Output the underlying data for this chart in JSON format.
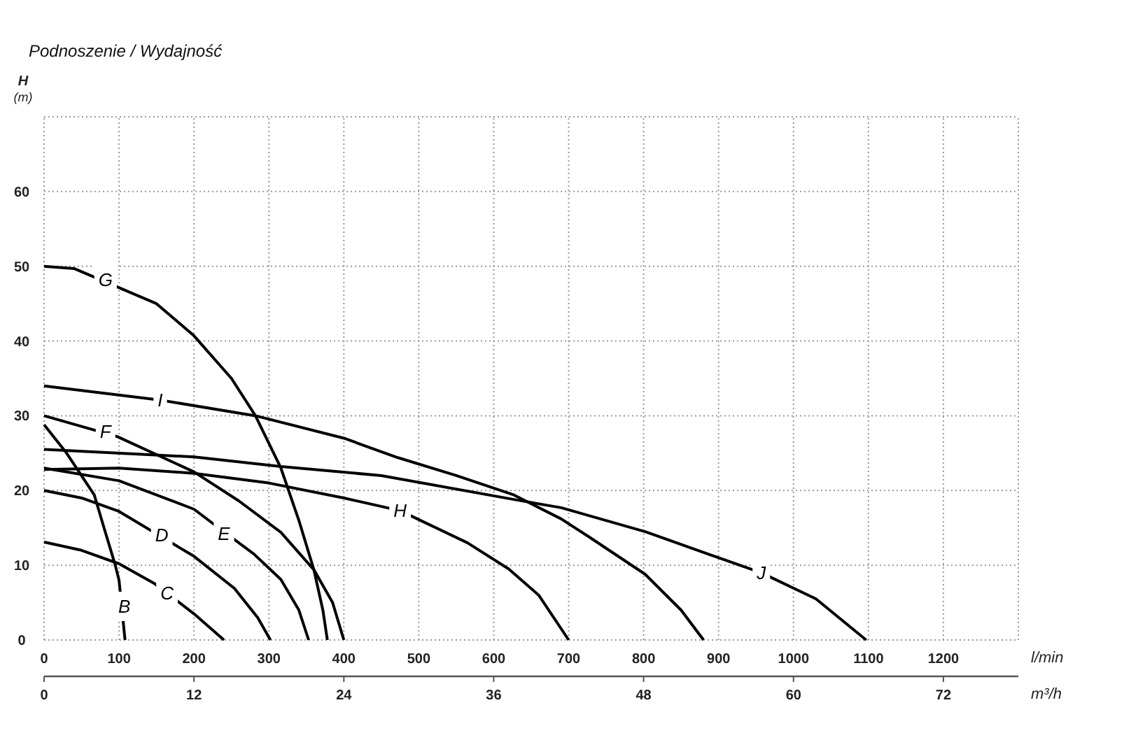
{
  "chart_data": {
    "type": "line",
    "title": "Podnoszenie / Wydajność",
    "xlabel": "l/min",
    "x2label": "m³/h",
    "ylabel": "H\n(m)",
    "xlim": [
      0,
      1300
    ],
    "xticks": [
      0,
      100,
      200,
      300,
      400,
      500,
      600,
      700,
      800,
      900,
      1000,
      1100,
      1200,
      {
        "value": 1300,
        "label": null
      }
    ],
    "x2lim": [
      0,
      78
    ],
    "x2ticks": [
      0,
      12,
      24,
      36,
      48,
      60,
      72
    ],
    "ylim": [
      0,
      70
    ],
    "yticks": [
      0,
      10,
      20,
      30,
      40,
      50,
      60,
      {
        "value": 70,
        "label": null
      }
    ],
    "grid": true,
    "marker": "none",
    "line_style": "solid",
    "series": [
      {
        "color": "#000000",
        "x": [
          0,
          30,
          67,
          80,
          95,
          100,
          108
        ],
        "values": [
          28.8,
          25,
          19.4,
          15,
          10,
          8,
          0
        ]
      },
      {
        "color": "#000000",
        "x": [
          0,
          50,
          100,
          148,
          200,
          240
        ],
        "values": [
          13.1,
          12,
          10.2,
          7.5,
          3.5,
          0
        ]
      },
      {
        "color": "#000000",
        "x": [
          0,
          50,
          100,
          200,
          254,
          285,
          302
        ],
        "values": [
          20,
          19,
          17.2,
          11.2,
          6.9,
          3,
          0
        ]
      },
      {
        "color": "#000000",
        "x": [
          0,
          100,
          200,
          229,
          280,
          316,
          340,
          353
        ],
        "values": [
          23,
          21.3,
          17.5,
          15.3,
          11.5,
          8.1,
          4,
          0
        ]
      },
      {
        "color": "#000000",
        "x": [
          0,
          98,
          200,
          260,
          316,
          360,
          385,
          400
        ],
        "values": [
          30,
          27.2,
          22.5,
          18.6,
          14.4,
          9.4,
          5,
          0
        ]
      },
      {
        "color": "#000000",
        "x": [
          0,
          40,
          150,
          200,
          250,
          282,
          316,
          340,
          360,
          372,
          378
        ],
        "values": [
          50,
          49.7,
          45,
          40.7,
          35,
          30,
          23,
          16,
          9.4,
          4,
          0
        ]
      },
      {
        "color": "#000000",
        "x": [
          0,
          100,
          200,
          300,
          400,
          475,
          565,
          620,
          660,
          700
        ],
        "values": [
          22.8,
          23,
          22.3,
          21,
          19,
          17.3,
          13,
          9.5,
          6,
          0
        ]
      },
      {
        "color": "#000000",
        "x": [
          0,
          155,
          282,
          400,
          472,
          550,
          627,
          690,
          727,
          802,
          850,
          880
        ],
        "values": [
          34,
          32.1,
          30,
          27,
          24.4,
          22,
          19.4,
          16.2,
          13.8,
          8.8,
          4,
          0
        ]
      },
      {
        "color": "#000000",
        "x": [
          0,
          200,
          316,
          450,
          627,
          690,
          802,
          900,
          957,
          1030,
          1097
        ],
        "values": [
          25.5,
          24.5,
          23.2,
          22,
          18.8,
          17.7,
          14.5,
          11,
          9,
          5.5,
          0
        ]
      }
    ],
    "annotations": [
      {
        "text": "B",
        "x": 107,
        "y": 4.5
      },
      {
        "text": "C",
        "x": 164,
        "y": 6.3
      },
      {
        "text": "D",
        "x": 157,
        "y": 14
      },
      {
        "text": "E",
        "x": 240,
        "y": 14.2
      },
      {
        "text": "F",
        "x": 82,
        "y": 27.9
      },
      {
        "text": "G",
        "x": 82,
        "y": 48.2
      },
      {
        "text": "H",
        "x": 475,
        "y": 17.3
      },
      {
        "text": "I",
        "x": 155,
        "y": 32.1
      },
      {
        "text": "J",
        "x": 957,
        "y": 9
      }
    ]
  }
}
